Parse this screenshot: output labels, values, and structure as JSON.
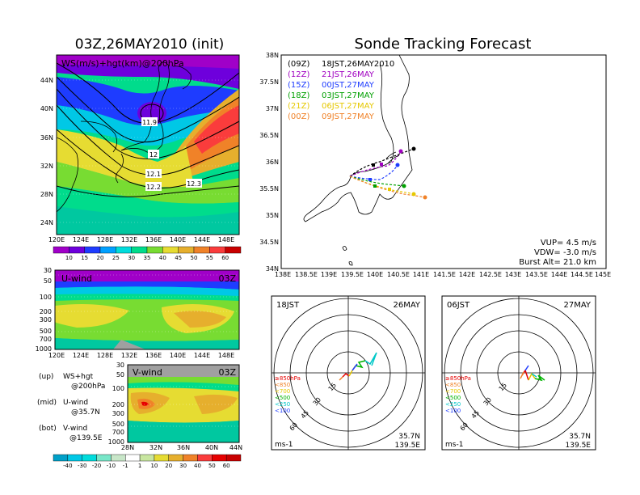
{
  "left": {
    "title": "03Z,26MAY2010 (init)",
    "map": {
      "label": "WS(m/s)+hgt(km)@200hPa",
      "lat_ticks": [
        "44N",
        "40N",
        "36N",
        "32N",
        "28N",
        "24N"
      ],
      "lon_ticks": [
        "120E",
        "124E",
        "128E",
        "132E",
        "136E",
        "140E",
        "144E",
        "148E"
      ],
      "contour_labels": [
        "11.9",
        "12",
        "12.1",
        "12.2",
        "12.3"
      ],
      "colorbar_ticks": [
        "10",
        "15",
        "20",
        "25",
        "30",
        "35",
        "40",
        "45",
        "50",
        "55",
        "60"
      ],
      "colorbar_colors": [
        "#a000c8",
        "#6e00dc",
        "#1e3cff",
        "#00a0ff",
        "#00dcdc",
        "#00dc8c",
        "#78dc32",
        "#e6dc32",
        "#e6af2d",
        "#f08228",
        "#fa3c3c",
        "#c80000"
      ]
    },
    "uwind": {
      "label": "U-wind",
      "time": "03Z",
      "p_ticks": [
        "30",
        "50",
        "100",
        "200",
        "300",
        "500",
        "700",
        "1000"
      ],
      "lon_ticks": [
        "120E",
        "124E",
        "128E",
        "132E",
        "136E",
        "140E",
        "144E",
        "148E"
      ]
    },
    "vwind": {
      "label": "V-wind",
      "time": "03Z",
      "p_ticks": [
        "30",
        "50",
        "100",
        "200",
        "300",
        "500",
        "700",
        "1000"
      ],
      "lat_ticks": [
        "28N",
        "32N",
        "36N",
        "40N",
        "44N"
      ],
      "colorbar_ticks": [
        "-40",
        "-30",
        "-20",
        "-10",
        "-1",
        "1",
        "10",
        "20",
        "30",
        "40",
        "50",
        "60"
      ]
    },
    "legend": [
      {
        "key": "(up)",
        "desc": "WS+hgt",
        "sub": "@200hPa"
      },
      {
        "key": "(mid)",
        "desc": "U-wind",
        "sub": "@35.7N"
      },
      {
        "key": "(bot)",
        "desc": "V-wind",
        "sub": "@139.5E"
      }
    ]
  },
  "right": {
    "title": "Sonde Tracking Forecast",
    "lat_ticks": [
      "38N",
      "37.5N",
      "37N",
      "36.5N",
      "36N",
      "35.5N",
      "35N",
      "34.5N",
      "34N"
    ],
    "lon_ticks": [
      "138E",
      "138.5E",
      "139E",
      "139.5E",
      "140E",
      "140.5E",
      "141E",
      "141.5E",
      "142E",
      "142.5E",
      "143E",
      "143.5E",
      "144E",
      "144.5E",
      "145E"
    ],
    "launches": [
      {
        "code": "(09Z)",
        "time": "18JST,26MAY2010",
        "color": "#000000"
      },
      {
        "code": "(12Z)",
        "time": "21JST,26MAY",
        "color": "#a000c0"
      },
      {
        "code": "(15Z)",
        "time": "00JST,27MAY",
        "color": "#1e3cff"
      },
      {
        "code": "(18Z)",
        "time": "03JST,27MAY",
        "color": "#00a000"
      },
      {
        "code": "(21Z)",
        "time": "06JST,27MAY",
        "color": "#e6c800"
      },
      {
        "code": "(00Z)",
        "time": "09JST,27MAY",
        "color": "#f08228"
      }
    ],
    "params": [
      "VUP= 4.5 m/s",
      "VDW= -3.0 m/s",
      "Burst Alt= 21.0 km"
    ]
  },
  "hodographs": [
    {
      "time": "18JST",
      "date": "26MAY",
      "lat": "35.7N",
      "lon": "139.5E",
      "unit": "ms-1",
      "rings": [
        "15",
        "30",
        "45",
        "60"
      ],
      "levels": [
        {
          "label": "≥850hPa",
          "color": "#e60000"
        },
        {
          "label": "<850",
          "color": "#f08228"
        },
        {
          "label": "<700",
          "color": "#e6c800"
        },
        {
          "label": "<500",
          "color": "#00b400"
        },
        {
          "label": "<250",
          "color": "#00c8c8"
        },
        {
          "label": "<100",
          "color": "#1e3cff"
        }
      ]
    },
    {
      "time": "06JST",
      "date": "27MAY",
      "lat": "35.7N",
      "lon": "139.5E",
      "unit": "ms-1",
      "rings": [
        "15",
        "30",
        "45",
        "60"
      ],
      "levels": [
        {
          "label": "≥850hPa",
          "color": "#e60000"
        },
        {
          "label": "<850",
          "color": "#f08228"
        },
        {
          "label": "<700",
          "color": "#e6c800"
        },
        {
          "label": "<500",
          "color": "#00b400"
        },
        {
          "label": "<250",
          "color": "#00c8c8"
        },
        {
          "label": "<100",
          "color": "#1e3cff"
        }
      ]
    }
  ]
}
